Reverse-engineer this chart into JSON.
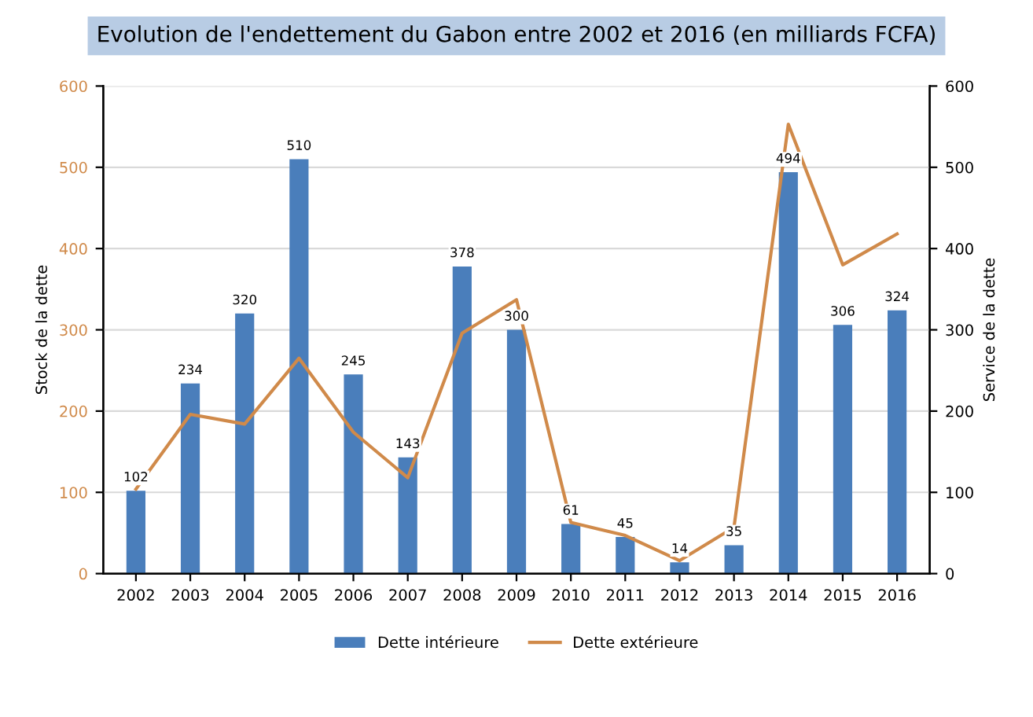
{
  "chart_data": {
    "type": "bar",
    "title": "Evolution de l'endettement du Gabon entre 2002 et 2016 (en milliards FCFA)",
    "ylabel": "Stock de la dette",
    "y2label": "Service de la dette",
    "categories": [
      "2002",
      "2003",
      "2004",
      "2005",
      "2006",
      "2007",
      "2008",
      "2009",
      "2010",
      "2011",
      "2012",
      "2013",
      "2014",
      "2015",
      "2016"
    ],
    "series": [
      {
        "name": "Dette intérieure",
        "color": "#4a7ebb",
        "values": [
          102,
          234,
          320,
          510,
          245,
          143,
          378,
          300,
          61,
          45,
          14,
          35,
          494,
          306,
          324
        ],
        "value_labels": [
          "102",
          "234",
          "320",
          "510",
          "245",
          "143",
          "378",
          "300",
          "61",
          "45",
          "14",
          "35",
          "494",
          "306",
          "324"
        ]
      },
      {
        "name": "Dette extérieure",
        "type": "line",
        "color": "#d08a4a",
        "values": [
          104,
          196,
          184,
          265,
          174,
          118,
          296,
          337,
          63,
          47,
          16,
          57,
          553,
          380,
          418
        ]
      }
    ],
    "ylim": [
      0,
      600
    ],
    "yticks": [
      0,
      100,
      200,
      300,
      400,
      500,
      600
    ],
    "y2lim": [
      0,
      600
    ],
    "y2ticks": [
      0,
      100,
      200,
      300,
      400,
      500,
      600
    ],
    "grid": "y",
    "legend": "bottom",
    "marker": "none",
    "line_style": "solid"
  }
}
